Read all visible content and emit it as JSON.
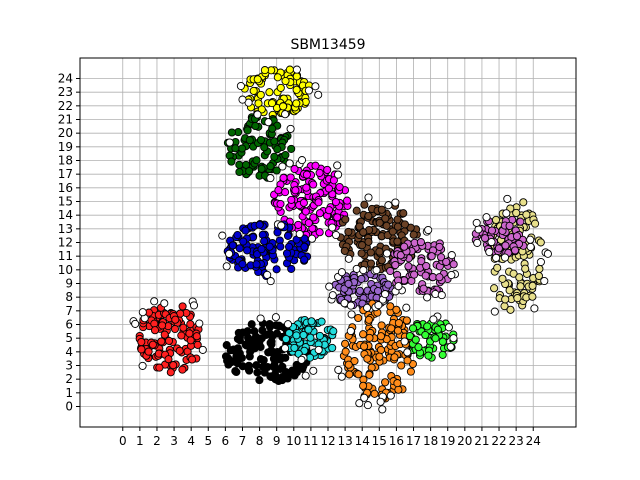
{
  "chart_data": {
    "type": "scatter",
    "title": "SBM13459",
    "xlabel": "",
    "ylabel": "",
    "xlim": [
      -2.5,
      26.5
    ],
    "ylim": [
      -1.5,
      25.5
    ],
    "xticks": [
      0,
      1,
      2,
      3,
      4,
      5,
      6,
      7,
      8,
      9,
      10,
      11,
      12,
      13,
      14,
      15,
      16,
      17,
      18,
      19,
      20,
      21,
      22,
      23,
      24
    ],
    "yticks": [
      0,
      1,
      2,
      3,
      4,
      5,
      6,
      7,
      8,
      9,
      10,
      11,
      12,
      13,
      14,
      15,
      16,
      17,
      18,
      19,
      20,
      21,
      22,
      23,
      24
    ],
    "grid": true,
    "legend": "none",
    "clusters": [
      {
        "color": "#ffff00",
        "center": [
          9,
          23
        ],
        "radius": [
          2,
          1.8
        ],
        "points": 90
      },
      {
        "color": "#006400",
        "center": [
          8,
          19
        ],
        "radius": [
          1.9,
          2.4
        ],
        "points": 90
      },
      {
        "color": "#ff00ff",
        "center": [
          11,
          15
        ],
        "radius": [
          2.2,
          2.7
        ],
        "points": 140
      },
      {
        "color": "#0000cd",
        "center": [
          8.5,
          11.5
        ],
        "radius": [
          2.4,
          2
        ],
        "points": 120
      },
      {
        "color": "#6b4226",
        "center": [
          15,
          12.5
        ],
        "radius": [
          2.4,
          2.5
        ],
        "points": 120
      },
      {
        "color": "#cc66cc",
        "center": [
          17.5,
          10.2
        ],
        "radius": [
          1.9,
          2.1
        ],
        "points": 90
      },
      {
        "color": "#9966cc",
        "center": [
          14,
          8.5
        ],
        "radius": [
          1.7,
          1.3
        ],
        "points": 70
      },
      {
        "color": "#ff2020",
        "center": [
          2.8,
          5
        ],
        "radius": [
          1.9,
          2.6
        ],
        "points": 110
      },
      {
        "color": "#000000",
        "center": [
          8.5,
          4
        ],
        "radius": [
          2.6,
          2.2
        ],
        "points": 140
      },
      {
        "color": "#22dddd",
        "center": [
          11,
          5
        ],
        "radius": [
          1.5,
          1.5
        ],
        "points": 70
      },
      {
        "color": "#ff8c1a",
        "center": [
          15,
          4
        ],
        "radius": [
          2.1,
          3.6
        ],
        "points": 140
      },
      {
        "color": "#33ff33",
        "center": [
          18,
          5
        ],
        "radius": [
          1.4,
          1.5
        ],
        "points": 55
      },
      {
        "color": "#e8e08c",
        "center": [
          23,
          11
        ],
        "radius": [
          1.6,
          4.2
        ],
        "points": 120
      },
      {
        "color": "#cc66cc",
        "center": [
          22.2,
          12.5
        ],
        "radius": [
          1.6,
          1.5
        ],
        "points": 55
      },
      {
        "color": "#ffffff",
        "center": [
          13,
          10
        ],
        "radius": [
          10.5,
          10
        ],
        "points": 120
      }
    ]
  }
}
